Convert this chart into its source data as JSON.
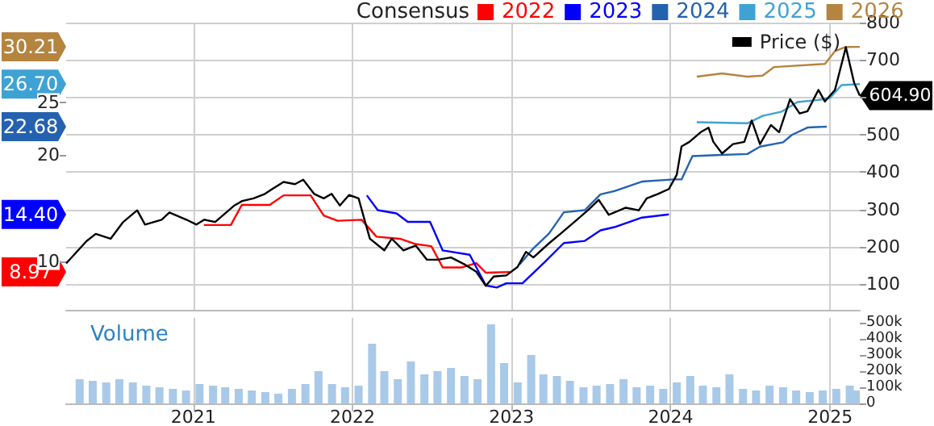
{
  "chart_data": [
    {
      "type": "line",
      "legend_title": "Consensus",
      "annotations": [
        {
          "text": "8.97",
          "y": 8.97
        },
        {
          "text": "14.40",
          "y": 14.4
        },
        {
          "text": "22.68",
          "y": 22.68
        },
        {
          "text": "26.70",
          "y": 26.7
        },
        {
          "text": "30.21",
          "y": 30.21
        }
      ],
      "legend": "top right",
      "grid": true,
      "tick_labels": "y",
      "xlim": [
        "2020-03-15",
        "2025-03-10"
      ],
      "xticks": [
        {
          "value": "2021-01-01",
          "label": null
        },
        {
          "value": "2022-01-01",
          "label": null
        },
        {
          "value": "2023-01-01",
          "label": null
        },
        {
          "value": "2024-01-01",
          "label": null
        },
        {
          "value": "2025-01-01",
          "label": null
        }
      ],
      "ylim": [
        5.4,
        32.5
      ],
      "yticks": [
        10,
        20,
        25
      ],
      "y2lim": [
        32,
        800
      ],
      "y2ticks": [
        100,
        200,
        300,
        400,
        500,
        {
          "value": 600,
          "label": null
        },
        700,
        800
      ],
      "series": [
        {
          "name": "2022",
          "color": "#ff0000",
          "x": [
            "2021-01-25",
            "2021-03-28",
            "2021-04-22",
            "2021-06-25",
            "2021-07-27",
            "2021-09-27",
            "2021-10-27",
            "2021-11-28",
            "2022-01-22",
            "2022-02-25",
            "2022-04-20",
            "2022-05-26",
            "2022-07-01",
            "2022-07-27",
            "2022-09-09",
            "2022-10-12",
            "2022-11-03",
            "2022-12-28"
          ],
          "values": [
            13.4,
            13.4,
            15.3,
            15.3,
            16.2,
            16.2,
            14.3,
            13.8,
            13.9,
            12.3,
            12.1,
            11.6,
            11.4,
            9.4,
            9.4,
            9.8,
            8.9,
            8.97
          ]
        },
        {
          "name": "2023",
          "color": "#0000ff",
          "x": [
            "2022-02-03",
            "2022-02-28",
            "2022-04-12",
            "2022-05-08",
            "2022-06-28",
            "2022-07-27",
            "2022-09-27",
            "2022-11-03",
            "2022-11-28",
            "2022-12-20",
            "2023-01-26",
            "2023-03-18",
            "2023-05-01",
            "2023-06-18",
            "2023-07-24",
            "2023-08-25",
            "2023-10-27",
            "2023-12-28"
          ],
          "values": [
            16.2,
            14.8,
            14.5,
            13.7,
            13.7,
            11.0,
            10.6,
            7.7,
            7.5,
            7.9,
            7.9,
            9.9,
            11.7,
            11.9,
            12.9,
            13.2,
            14.1,
            14.4
          ]
        },
        {
          "name": "2024",
          "color": "#2462b0",
          "x": [
            "2023-01-20",
            "2023-02-20",
            "2023-03-28",
            "2023-05-01",
            "2023-06-18",
            "2023-07-24",
            "2023-08-25",
            "2023-10-27",
            "2024-01-08",
            "2024-01-26",
            "2024-02-20",
            "2024-04-15",
            "2024-06-25",
            "2024-07-24",
            "2024-09-15",
            "2024-10-05",
            "2024-11-10",
            "2024-12-24"
          ],
          "values": [
            9.7,
            11.2,
            12.6,
            14.6,
            14.8,
            16.3,
            16.6,
            17.5,
            17.7,
            17.7,
            19.9,
            20.0,
            20.1,
            20.8,
            21.2,
            21.9,
            22.6,
            22.68
          ]
        },
        {
          "name": "2025",
          "color": "#3fa2d4",
          "x": [
            "2024-03-01",
            "2024-06-25",
            "2024-07-30",
            "2024-09-12",
            "2024-10-18",
            "2024-12-05",
            "2025-01-01",
            "2025-01-27",
            "2025-03-10"
          ],
          "values": [
            23.1,
            23.0,
            23.7,
            24.1,
            25.0,
            25.2,
            25.4,
            26.6,
            26.7
          ]
        },
        {
          "name": "2026",
          "color": "#b5843f",
          "x": [
            "2024-03-01",
            "2024-04-28",
            "2024-06-25",
            "2024-07-30",
            "2024-08-25",
            "2024-12-20",
            "2025-01-12",
            "2025-02-06",
            "2025-03-10"
          ],
          "values": [
            27.4,
            27.7,
            27.4,
            27.5,
            28.3,
            28.6,
            29.8,
            30.2,
            30.21
          ]
        },
        {
          "name": "Price ($)",
          "color": "#000000",
          "axis": "y2",
          "x": [
            "2020-03-15",
            "2020-05-01",
            "2020-05-22",
            "2020-06-25",
            "2020-07-24",
            "2020-08-25",
            "2020-09-12",
            "2020-10-20",
            "2020-11-07",
            "2020-12-16",
            "2021-01-08",
            "2021-01-26",
            "2021-02-20",
            "2021-04-05",
            "2021-04-23",
            "2021-05-19",
            "2021-06-14",
            "2021-07-01",
            "2021-07-27",
            "2021-08-22",
            "2021-09-10",
            "2021-10-05",
            "2021-10-27",
            "2021-11-14",
            "2021-12-03",
            "2021-12-24",
            "2022-01-15",
            "2022-01-30",
            "2022-02-10",
            "2022-03-15",
            "2022-04-01",
            "2022-04-28",
            "2022-05-26",
            "2022-06-21",
            "2022-07-16",
            "2022-08-15",
            "2022-09-16",
            "2022-10-12",
            "2022-11-03",
            "2022-11-21",
            "2022-12-20",
            "2023-01-15",
            "2023-02-03",
            "2023-02-20",
            "2023-03-28",
            "2023-04-23",
            "2023-05-31",
            "2023-06-25",
            "2023-07-20",
            "2023-08-12",
            "2023-09-20",
            "2023-10-20",
            "2023-11-07",
            "2023-12-03",
            "2023-12-28",
            "2024-01-15",
            "2024-01-26",
            "2024-02-13",
            "2024-03-10",
            "2024-03-28",
            "2024-04-08",
            "2024-04-28",
            "2024-05-23",
            "2024-06-18",
            "2024-07-05",
            "2024-07-24",
            "2024-08-18",
            "2024-09-06",
            "2024-10-01",
            "2024-10-23",
            "2024-11-10",
            "2024-12-05",
            "2024-12-20",
            "2025-01-12",
            "2025-02-06",
            "2025-02-25",
            "2025-03-10"
          ],
          "values": [
            156,
            216,
            235,
            222,
            267,
            298,
            260,
            273,
            292,
            273,
            260,
            273,
            267,
            311,
            323,
            330,
            342,
            355,
            374,
            368,
            380,
            342,
            330,
            342,
            311,
            339,
            330,
            267,
            222,
            191,
            222,
            191,
            204,
            166,
            166,
            172,
            153,
            134,
            96,
            121,
            124,
            147,
            187,
            172,
            210,
            235,
            273,
            298,
            326,
            286,
            305,
            298,
            330,
            342,
            355,
            393,
            469,
            481,
            507,
            519,
            481,
            450,
            475,
            481,
            538,
            475,
            526,
            507,
            595,
            557,
            563,
            620,
            589,
            620,
            734,
            639,
            604.9
          ],
          "value_labels": [
            null,
            null,
            null,
            null,
            null,
            null,
            null,
            null,
            null,
            null,
            null,
            null,
            null,
            null,
            null,
            null,
            null,
            null,
            null,
            null,
            null,
            null,
            null,
            null,
            null,
            null,
            null,
            null,
            null,
            null,
            null,
            null,
            null,
            null,
            null,
            null,
            null,
            null,
            null,
            null,
            null,
            null,
            null,
            null,
            null,
            null,
            null,
            null,
            null,
            null,
            null,
            null,
            null,
            null,
            null,
            null,
            null,
            null,
            null,
            null,
            null,
            null,
            null,
            null,
            null,
            null,
            null,
            null,
            null,
            null,
            null,
            null,
            null,
            null,
            null,
            null,
            "604.90"
          ]
        }
      ]
    },
    {
      "type": "bar",
      "title": "Volume",
      "grid": "x",
      "color": "#a9c9e8",
      "xlim": [
        "2020-03-15",
        "2025-03-10"
      ],
      "xticks": [
        {
          "value": "2021-01-01",
          "label": "2021"
        },
        {
          "value": "2022-01-01",
          "label": "2022"
        },
        {
          "value": "2023-01-01",
          "label": "2023"
        },
        {
          "value": "2024-01-01",
          "label": "2024"
        },
        {
          "value": "2025-01-01",
          "label": "2025"
        }
      ],
      "ylim": [
        0,
        530000
      ],
      "yticks": [
        0,
        {
          "value": 100000,
          "label": "100k"
        },
        {
          "value": 200000,
          "label": "200k"
        },
        {
          "value": 300000,
          "label": "300k"
        },
        {
          "value": 400000,
          "label": "400k"
        },
        {
          "value": 500000,
          "label": "500k"
        }
      ],
      "x": [
        "2020-04-15",
        "2020-05-15",
        "2020-06-15",
        "2020-07-15",
        "2020-08-15",
        "2020-09-15",
        "2020-10-15",
        "2020-11-15",
        "2020-12-15",
        "2021-01-15",
        "2021-02-15",
        "2021-03-15",
        "2021-04-15",
        "2021-05-15",
        "2021-06-15",
        "2021-07-15",
        "2021-08-15",
        "2021-09-15",
        "2021-10-15",
        "2021-11-15",
        "2021-12-15",
        "2022-01-15",
        "2022-02-15",
        "2022-03-15",
        "2022-04-15",
        "2022-05-15",
        "2022-06-15",
        "2022-07-15",
        "2022-08-15",
        "2022-09-15",
        "2022-10-15",
        "2022-11-15",
        "2022-12-15",
        "2023-01-15",
        "2023-02-15",
        "2023-03-15",
        "2023-04-15",
        "2023-05-15",
        "2023-06-15",
        "2023-07-15",
        "2023-08-15",
        "2023-09-15",
        "2023-10-15",
        "2023-11-15",
        "2023-12-15",
        "2024-01-15",
        "2024-02-15",
        "2024-03-15",
        "2024-04-15",
        "2024-05-15",
        "2024-06-15",
        "2024-07-15",
        "2024-08-15",
        "2024-09-15",
        "2024-10-15",
        "2024-11-15",
        "2024-12-15",
        "2025-01-15",
        "2025-02-15",
        "2025-03-01"
      ],
      "values": [
        150000,
        140000,
        130000,
        150000,
        130000,
        110000,
        100000,
        90000,
        80000,
        120000,
        110000,
        100000,
        90000,
        80000,
        70000,
        60000,
        90000,
        120000,
        200000,
        120000,
        100000,
        110000,
        370000,
        200000,
        150000,
        260000,
        180000,
        200000,
        220000,
        170000,
        150000,
        490000,
        250000,
        130000,
        300000,
        180000,
        170000,
        140000,
        100000,
        110000,
        120000,
        150000,
        100000,
        110000,
        90000,
        130000,
        170000,
        110000,
        100000,
        180000,
        90000,
        80000,
        110000,
        100000,
        80000,
        70000,
        80000,
        90000,
        110000,
        80000
      ]
    }
  ]
}
